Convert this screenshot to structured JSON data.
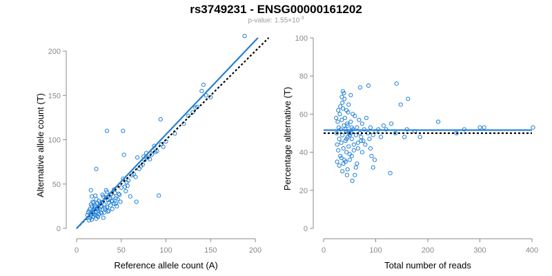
{
  "title": "rs3749231 - ENSG00000161202",
  "subtitle": {
    "prefix": "p-value: 1.55×10",
    "exponent": "-3"
  },
  "colors": {
    "points": "#1f7fd6",
    "fit_line": "#1f7fd6",
    "reference_line": "#000000",
    "axis": "#888888"
  },
  "chart_data": [
    {
      "type": "scatter",
      "xlabel": "Reference allele count (A)",
      "ylabel": "Alternative allele count (T)",
      "xlim": [
        0,
        210
      ],
      "ylim": [
        0,
        210
      ],
      "xticks": [
        0,
        50,
        100,
        150,
        200
      ],
      "yticks": [
        0,
        50,
        100,
        150,
        200
      ],
      "fit_line": {
        "style": "solid",
        "from": [
          0,
          0
        ],
        "to": [
          203,
          215
        ]
      },
      "reference_line": {
        "style": "dotted",
        "from": [
          0,
          0
        ],
        "to": [
          215,
          215
        ]
      },
      "points": [
        [
          14,
          20
        ],
        [
          15,
          22
        ],
        [
          16,
          14
        ],
        [
          17,
          25
        ],
        [
          18,
          18
        ],
        [
          19,
          21
        ],
        [
          20,
          24
        ],
        [
          21,
          15
        ],
        [
          22,
          19
        ],
        [
          23,
          28
        ],
        [
          15,
          12
        ],
        [
          16,
          16
        ],
        [
          17,
          10
        ],
        [
          18,
          13
        ],
        [
          19,
          17
        ],
        [
          20,
          22
        ],
        [
          21,
          26
        ],
        [
          22,
          11
        ],
        [
          23,
          14
        ],
        [
          24,
          20
        ],
        [
          25,
          16
        ],
        [
          26,
          22
        ],
        [
          27,
          18
        ],
        [
          28,
          25
        ],
        [
          29,
          30
        ],
        [
          30,
          12
        ],
        [
          31,
          27
        ],
        [
          32,
          21
        ],
        [
          33,
          35
        ],
        [
          34,
          24
        ],
        [
          35,
          19
        ],
        [
          36,
          29
        ],
        [
          37,
          33
        ],
        [
          38,
          26
        ],
        [
          39,
          31
        ],
        [
          40,
          22
        ],
        [
          41,
          36
        ],
        [
          42,
          28
        ],
        [
          43,
          40
        ],
        [
          44,
          34
        ],
        [
          13,
          18
        ],
        [
          12,
          15
        ],
        [
          14,
          9
        ],
        [
          16,
          27
        ],
        [
          18,
          30
        ],
        [
          20,
          16
        ],
        [
          22,
          33
        ],
        [
          24,
          13
        ],
        [
          26,
          29
        ],
        [
          28,
          17
        ],
        [
          30,
          36
        ],
        [
          32,
          23
        ],
        [
          34,
          41
        ],
        [
          36,
          20
        ],
        [
          38,
          38
        ],
        [
          40,
          31
        ],
        [
          42,
          44
        ],
        [
          45,
          25
        ],
        [
          47,
          39
        ],
        [
          49,
          30
        ],
        [
          17,
          36
        ],
        [
          19,
          29
        ],
        [
          21,
          37
        ],
        [
          23,
          22
        ],
        [
          25,
          31
        ],
        [
          27,
          24
        ],
        [
          29,
          38
        ],
        [
          31,
          18
        ],
        [
          33,
          43
        ],
        [
          35,
          32
        ],
        [
          16,
          43
        ],
        [
          22,
          67
        ],
        [
          34,
          110
        ],
        [
          52,
          110
        ],
        [
          53,
          83
        ],
        [
          58,
          54
        ],
        [
          62,
          60
        ],
        [
          68,
          80
        ],
        [
          70,
          67
        ],
        [
          75,
          81
        ],
        [
          78,
          85
        ],
        [
          84,
          83
        ],
        [
          87,
          93
        ],
        [
          90,
          87
        ],
        [
          95,
          95
        ],
        [
          97,
          92
        ],
        [
          92,
          37
        ],
        [
          94,
          123
        ],
        [
          60,
          36
        ],
        [
          67,
          30
        ],
        [
          55,
          42
        ],
        [
          57,
          48
        ],
        [
          50,
          46
        ],
        [
          48,
          38
        ],
        [
          46,
          33
        ],
        [
          44,
          28
        ],
        [
          52,
          56
        ],
        [
          54,
          47
        ],
        [
          56,
          52
        ],
        [
          64,
          61
        ],
        [
          66,
          58
        ],
        [
          72,
          70
        ],
        [
          74,
          72
        ],
        [
          80,
          80
        ],
        [
          82,
          78
        ],
        [
          125,
          127
        ],
        [
          130,
          131
        ],
        [
          133,
          136
        ],
        [
          135,
          137
        ],
        [
          140,
          155
        ],
        [
          142,
          162
        ],
        [
          145,
          150
        ],
        [
          188,
          217
        ],
        [
          150,
          148
        ],
        [
          120,
          118
        ],
        [
          110,
          107
        ],
        [
          100,
          98
        ],
        [
          88,
          86
        ],
        [
          85,
          88
        ],
        [
          76,
          77
        ]
      ]
    },
    {
      "type": "scatter",
      "xlabel": "Total number of reads",
      "ylabel": "Percentage alternative (T)",
      "xlim": [
        0,
        400
      ],
      "ylim": [
        0,
        100
      ],
      "xticks": [
        0,
        100,
        200,
        300,
        400
      ],
      "yticks": [
        0,
        20,
        40,
        60,
        80,
        100
      ],
      "fit_line": {
        "style": "solid",
        "value": 51.6
      },
      "reference_line": {
        "style": "dotted",
        "value": 50
      },
      "points": [
        [
          25,
          50
        ],
        [
          26,
          44
        ],
        [
          27,
          56
        ],
        [
          28,
          41
        ],
        [
          29,
          53
        ],
        [
          30,
          47
        ],
        [
          31,
          60
        ],
        [
          32,
          38
        ],
        [
          33,
          52
        ],
        [
          34,
          45
        ],
        [
          35,
          57
        ],
        [
          36,
          49
        ],
        [
          37,
          63
        ],
        [
          38,
          42
        ],
        [
          39,
          54
        ],
        [
          40,
          36
        ],
        [
          41,
          58
        ],
        [
          42,
          46
        ],
        [
          43,
          51
        ],
        [
          44,
          40
        ],
        [
          45,
          55
        ],
        [
          46,
          48
        ],
        [
          47,
          61
        ],
        [
          48,
          43
        ],
        [
          49,
          50
        ],
        [
          50,
          39
        ],
        [
          52,
          56
        ],
        [
          54,
          47
        ],
        [
          56,
          52
        ],
        [
          58,
          44
        ],
        [
          60,
          59
        ],
        [
          62,
          49
        ],
        [
          64,
          53
        ],
        [
          66,
          45
        ],
        [
          68,
          57
        ],
        [
          70,
          50
        ],
        [
          72,
          48
        ],
        [
          74,
          55
        ],
        [
          76,
          46
        ],
        [
          78,
          52
        ],
        [
          80,
          44
        ],
        [
          82,
          58
        ],
        [
          85,
          50
        ],
        [
          88,
          47
        ],
        [
          90,
          53
        ],
        [
          95,
          49
        ],
        [
          100,
          51
        ],
        [
          105,
          52
        ],
        [
          110,
          48
        ],
        [
          115,
          54
        ],
        [
          24,
          58
        ],
        [
          26,
          35
        ],
        [
          28,
          62
        ],
        [
          30,
          33
        ],
        [
          32,
          64
        ],
        [
          34,
          37
        ],
        [
          36,
          66
        ],
        [
          38,
          34
        ],
        [
          40,
          68
        ],
        [
          42,
          35
        ],
        [
          44,
          62
        ],
        [
          46,
          31
        ],
        [
          48,
          65
        ],
        [
          50,
          36
        ],
        [
          52,
          70
        ],
        [
          54,
          38
        ],
        [
          56,
          60
        ],
        [
          58,
          41
        ],
        [
          35,
          69
        ],
        [
          37,
          72
        ],
        [
          39,
          71
        ],
        [
          36,
          30
        ],
        [
          45,
          28
        ],
        [
          55,
          25
        ],
        [
          60,
          28
        ],
        [
          62,
          32
        ],
        [
          64,
          34
        ],
        [
          66,
          42
        ],
        [
          70,
          74
        ],
        [
          72,
          46
        ],
        [
          74,
          40
        ],
        [
          86,
          75
        ],
        [
          90,
          42
        ],
        [
          92,
          38
        ],
        [
          95,
          32
        ],
        [
          98,
          36
        ],
        [
          120,
          52
        ],
        [
          130,
          55
        ],
        [
          128,
          29
        ],
        [
          138,
          50
        ],
        [
          140,
          76
        ],
        [
          148,
          65
        ],
        [
          155,
          48
        ],
        [
          160,
          52
        ],
        [
          162,
          68
        ],
        [
          175,
          51
        ],
        [
          185,
          48
        ],
        [
          220,
          56
        ],
        [
          255,
          50
        ],
        [
          270,
          52
        ],
        [
          300,
          53
        ],
        [
          308,
          53
        ],
        [
          402,
          53
        ],
        [
          42,
          52
        ],
        [
          44,
          47
        ],
        [
          46,
          54
        ],
        [
          48,
          51
        ],
        [
          50,
          49
        ],
        [
          52,
          50
        ],
        [
          54,
          53
        ]
      ]
    }
  ]
}
